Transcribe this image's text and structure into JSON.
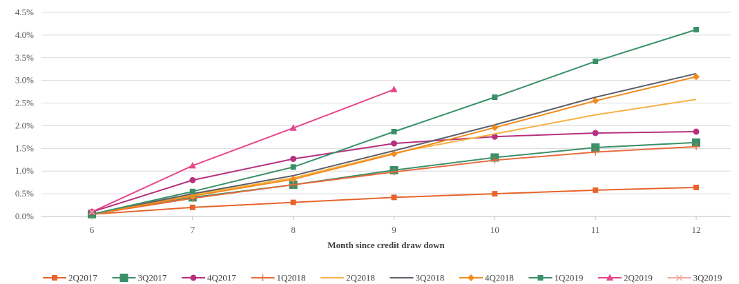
{
  "chart_data": {
    "type": "line",
    "title": "",
    "xlabel": "Month since credit draw down",
    "ylabel": "",
    "x": [
      6,
      7,
      8,
      9,
      10,
      11,
      12
    ],
    "x_tick_labels": [
      "6",
      "7",
      "8",
      "9",
      "10",
      "11",
      "12"
    ],
    "ylim": [
      0,
      4.5
    ],
    "y_ticks": [
      0,
      0.5,
      1.0,
      1.5,
      2.0,
      2.5,
      3.0,
      3.5,
      4.0,
      4.5
    ],
    "y_tick_labels": [
      "0.0%",
      "0.5%",
      "1.0%",
      "1.5%",
      "2.0%",
      "2.5%",
      "3.0%",
      "3.5%",
      "4.0%",
      "4.5%"
    ],
    "y_unit": "%",
    "grid": "horizontal",
    "legend_position": "bottom",
    "series": [
      {
        "name": "2Q2017",
        "color": "#E8632B",
        "marker": "square",
        "values": [
          0.05,
          0.2,
          0.31,
          0.42,
          0.5,
          0.58,
          0.64
        ]
      },
      {
        "name": "3Q2017",
        "color": "#3A9068",
        "marker": "square-large",
        "values": [
          0.05,
          0.42,
          0.7,
          1.02,
          1.3,
          1.52,
          1.63
        ]
      },
      {
        "name": "4Q2017",
        "color": "#B5307E",
        "marker": "circle",
        "values": [
          0.1,
          0.8,
          1.27,
          1.61,
          1.76,
          1.84,
          1.87
        ]
      },
      {
        "name": "1Q2018",
        "color": "#E86A3C",
        "marker": "plus",
        "values": [
          0.05,
          0.4,
          0.7,
          0.98,
          1.24,
          1.42,
          1.54
        ]
      },
      {
        "name": "2Q2018",
        "color": "#F6B244",
        "marker": "none",
        "values": [
          0.05,
          0.48,
          0.85,
          1.4,
          1.82,
          2.24,
          2.58
        ]
      },
      {
        "name": "3Q2018",
        "color": "#5E5E6A",
        "marker": "none",
        "values": [
          0.05,
          0.5,
          0.9,
          1.45,
          2.02,
          2.63,
          3.15
        ]
      },
      {
        "name": "4Q2018",
        "color": "#F28C1E",
        "marker": "diamond",
        "values": [
          0.05,
          0.45,
          0.82,
          1.38,
          1.96,
          2.55,
          3.08
        ]
      },
      {
        "name": "1Q2019",
        "color": "#3A9068",
        "marker": "square",
        "values": [
          0.05,
          0.55,
          1.09,
          1.87,
          2.63,
          3.42,
          4.12
        ]
      },
      {
        "name": "2Q2019",
        "color": "#E8458B",
        "marker": "triangle",
        "values": [
          0.1,
          1.12,
          1.95,
          2.8,
          null,
          null,
          null
        ]
      },
      {
        "name": "3Q2019",
        "color": "#F4A7A0",
        "marker": "cross",
        "values": [
          0.1,
          null,
          null,
          null,
          null,
          null,
          null
        ]
      }
    ]
  }
}
